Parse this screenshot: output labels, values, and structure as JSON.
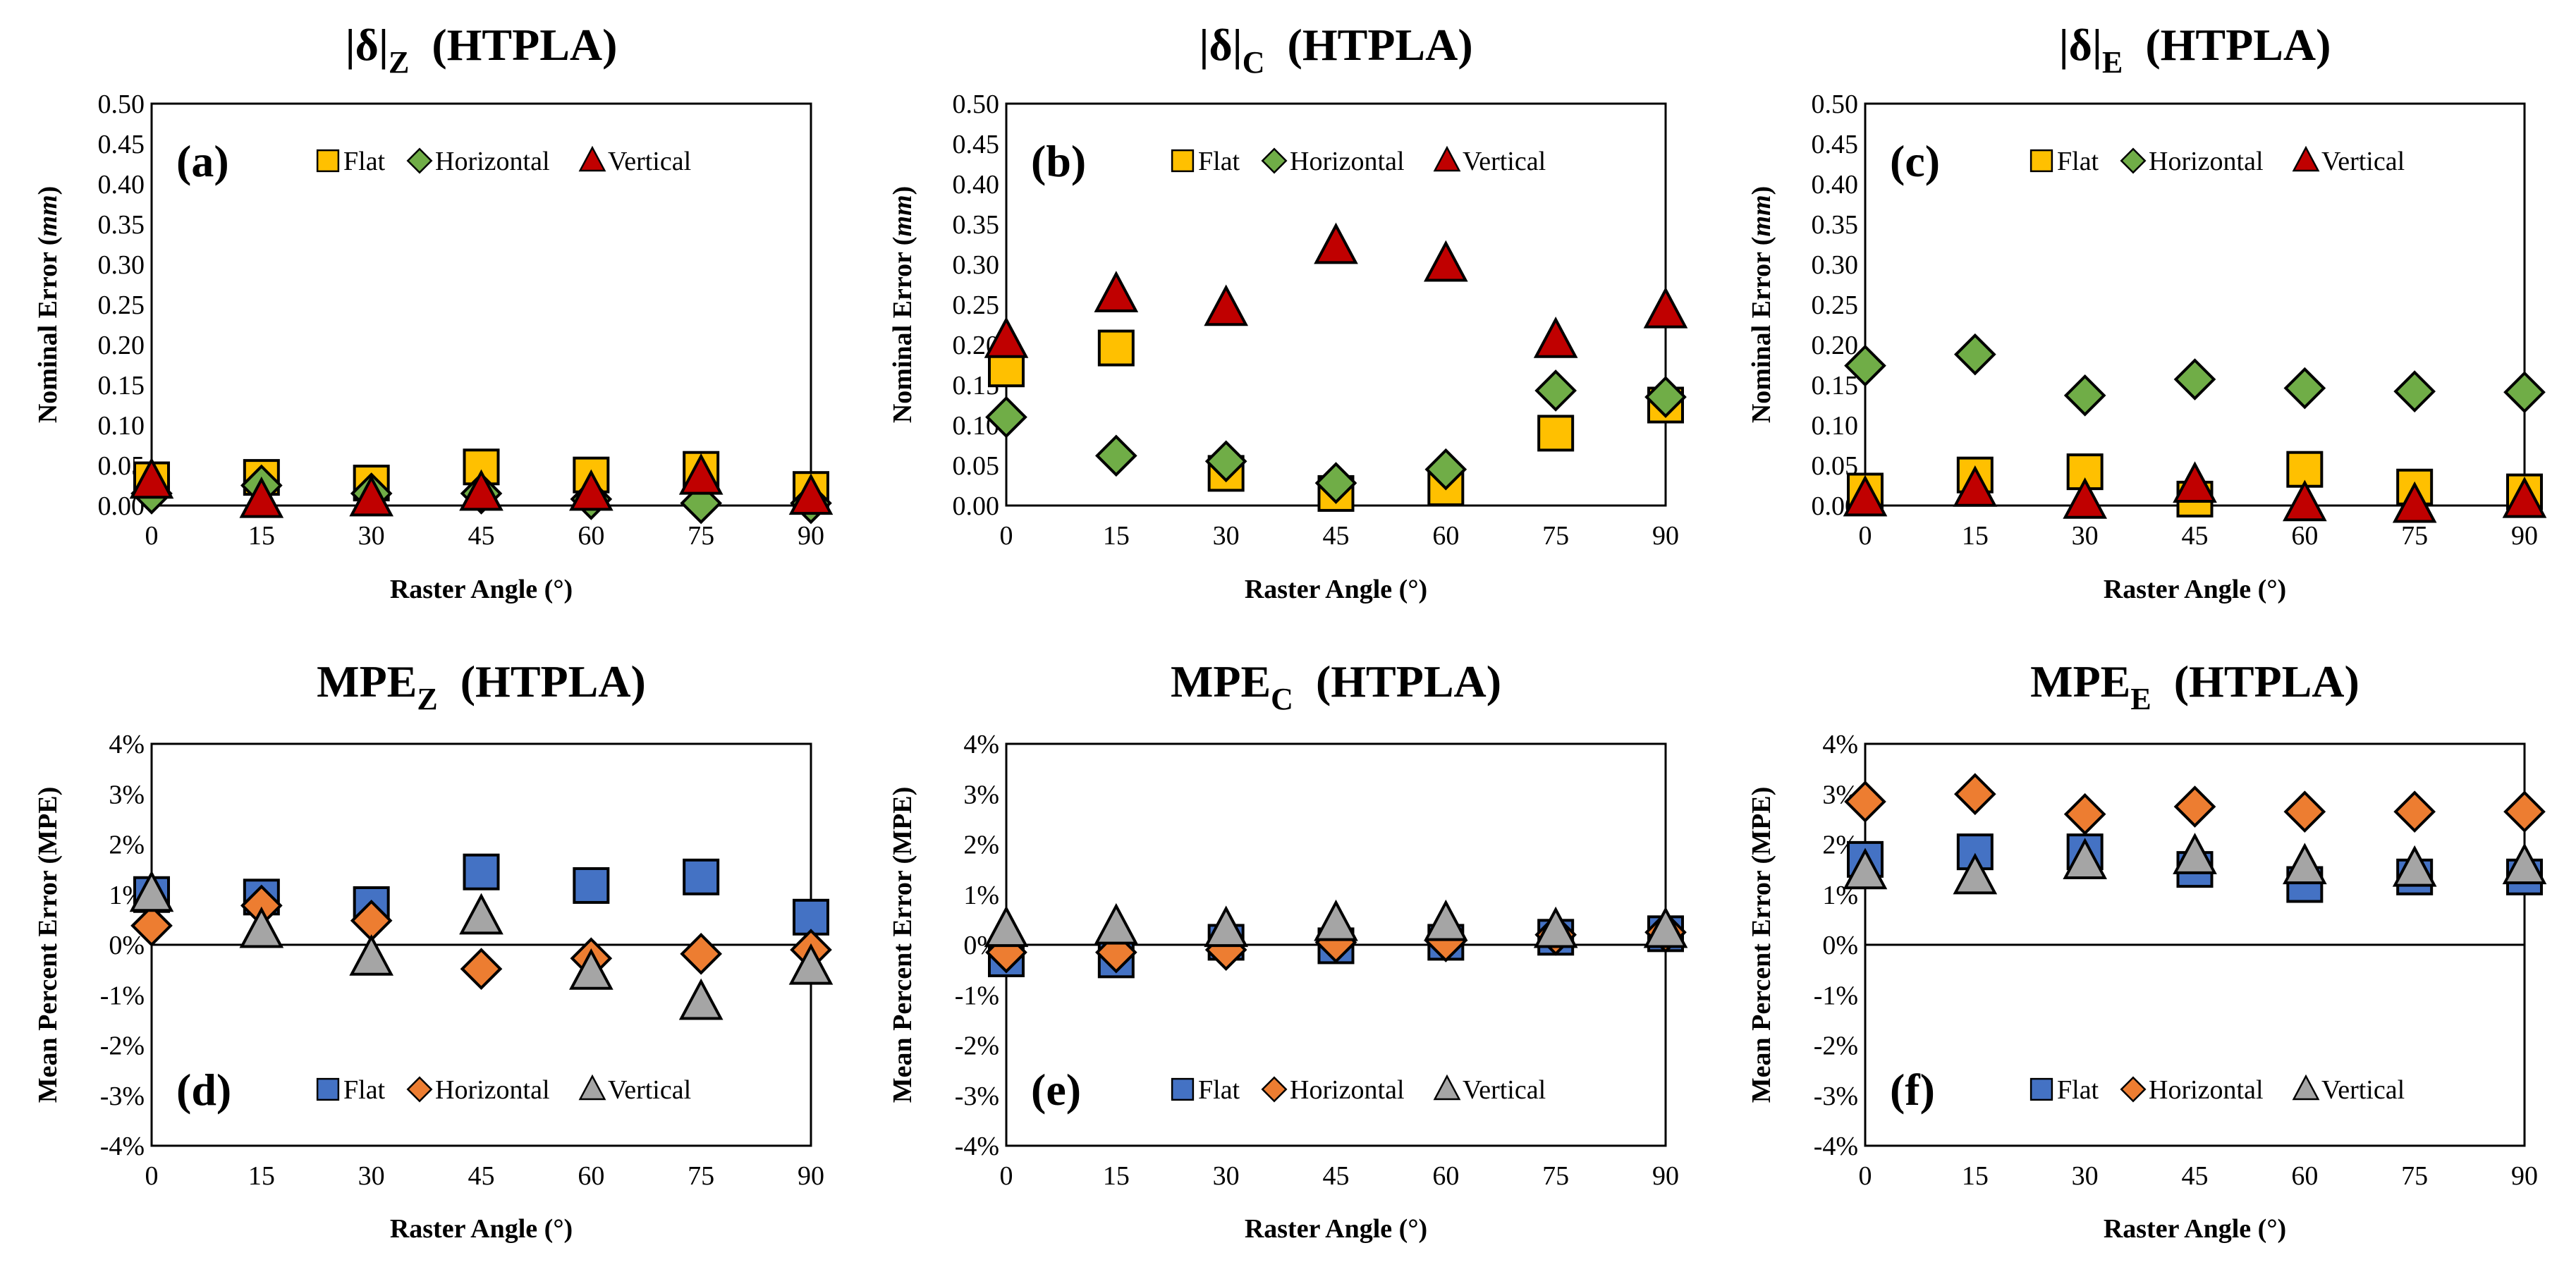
{
  "colors": {
    "flat_top": "#FFC000",
    "horizontal_top": "#70AD47",
    "vertical_top": "#C00000",
    "flat_bottom": "#4472C4",
    "horizontal_bottom": "#ED7D31",
    "vertical_bottom": "#A5A5A5",
    "marker_edge": "#000000"
  },
  "chart_data": [
    {
      "type": "scatter",
      "panel_label": "(a)",
      "title_main": "|δ|",
      "title_sub": "Z",
      "title_rest": "(HTPLA)",
      "xlabel": "Raster Angle (°)",
      "ylabel_pre": "Nominal  Error (",
      "ylabel_unit": "mm",
      "ylabel_post": ")",
      "x": [
        0,
        15,
        30,
        45,
        60,
        75,
        90
      ],
      "xticks": [
        "0",
        "15",
        "30",
        "45",
        "60",
        "75",
        "90"
      ],
      "ylim": [
        0,
        0.5
      ],
      "yticks": [
        "0.00",
        "0.05",
        "0.10",
        "0.15",
        "0.20",
        "0.25",
        "0.30",
        "0.35",
        "0.40",
        "0.45",
        "0.50"
      ],
      "legend_position": "top",
      "series": [
        {
          "name": "Flat",
          "marker": "square",
          "color": "#FFC000",
          "values": [
            0.032,
            0.035,
            0.028,
            0.048,
            0.038,
            0.045,
            0.02
          ]
        },
        {
          "name": "Horizontal",
          "marker": "diamond",
          "color": "#70AD47",
          "values": [
            0.015,
            0.025,
            0.015,
            0.015,
            0.008,
            0.003,
            0.003
          ]
        },
        {
          "name": "Vertical",
          "marker": "triangle",
          "color": "#C00000",
          "values": [
            0.03,
            0.006,
            0.008,
            0.015,
            0.015,
            0.035,
            0.01
          ]
        }
      ]
    },
    {
      "type": "scatter",
      "panel_label": "(b)",
      "title_main": "|δ|",
      "title_sub": "C",
      "title_rest": "(HTPLA)",
      "xlabel": "Raster Angle (°)",
      "ylabel_pre": "Nominal Error (",
      "ylabel_unit": "mm",
      "ylabel_post": ")",
      "x": [
        0,
        15,
        30,
        45,
        60,
        75,
        90
      ],
      "xticks": [
        "0",
        "15",
        "30",
        "45",
        "60",
        "75",
        "90"
      ],
      "ylim": [
        0,
        0.5
      ],
      "yticks": [
        "0.00",
        "0.05",
        "0.10",
        "0.15",
        "0.20",
        "0.25",
        "0.30",
        "0.35",
        "0.40",
        "0.45",
        "0.50"
      ],
      "legend_position": "top",
      "series": [
        {
          "name": "Flat",
          "marker": "square",
          "color": "#FFC000",
          "values": [
            0.17,
            0.196,
            0.04,
            0.015,
            0.022,
            0.09,
            0.125
          ]
        },
        {
          "name": "Horizontal",
          "marker": "diamond",
          "color": "#70AD47",
          "values": [
            0.11,
            0.062,
            0.055,
            0.028,
            0.045,
            0.143,
            0.135
          ]
        },
        {
          "name": "Vertical",
          "marker": "triangle",
          "color": "#C00000",
          "values": [
            0.205,
            0.262,
            0.245,
            0.322,
            0.3,
            0.205,
            0.242
          ]
        }
      ]
    },
    {
      "type": "scatter",
      "panel_label": "(c)",
      "title_main": "|δ|",
      "title_sub": "E",
      "title_rest": "(HTPLA)",
      "xlabel": "Raster Angle (°)",
      "ylabel_pre": "Nominal Error (",
      "ylabel_unit": "mm",
      "ylabel_post": ")",
      "x": [
        0,
        15,
        30,
        45,
        60,
        75,
        90
      ],
      "xticks": [
        "0",
        "15",
        "30",
        "45",
        "60",
        "75",
        "90"
      ],
      "ylim": [
        0,
        0.5
      ],
      "yticks": [
        "0.00",
        "0.05",
        "0.10",
        "0.15",
        "0.20",
        "0.25",
        "0.30",
        "0.35",
        "0.40",
        "0.45",
        "0.50"
      ],
      "legend_position": "top",
      "series": [
        {
          "name": "Flat",
          "marker": "square",
          "color": "#FFC000",
          "values": [
            0.018,
            0.038,
            0.042,
            0.008,
            0.045,
            0.023,
            0.017
          ]
        },
        {
          "name": "Horizontal",
          "marker": "diamond",
          "color": "#70AD47",
          "values": [
            0.174,
            0.188,
            0.137,
            0.157,
            0.146,
            0.142,
            0.141
          ]
        },
        {
          "name": "Vertical",
          "marker": "triangle",
          "color": "#C00000",
          "values": [
            0.008,
            0.02,
            0.005,
            0.025,
            0.002,
            0.0,
            0.006
          ]
        }
      ]
    },
    {
      "type": "scatter",
      "panel_label": "(d)",
      "title_main": "MPE",
      "title_sub": "Z",
      "title_rest": "(HTPLA)",
      "xlabel": "Raster Angle (°)",
      "ylabel_pre": "Mean Percent Error (MPE)",
      "ylabel_unit": "",
      "ylabel_post": "",
      "x": [
        0,
        15,
        30,
        45,
        60,
        75,
        90
      ],
      "xticks": [
        "0",
        "15",
        "30",
        "45",
        "60",
        "75",
        "90"
      ],
      "ylim": [
        -4,
        4
      ],
      "yticks": [
        "-4%",
        "-3%",
        "-2%",
        "-1%",
        "0%",
        "1%",
        "2%",
        "3%",
        "4%"
      ],
      "legend_position": "bottom",
      "series": [
        {
          "name": "Flat",
          "marker": "square",
          "color": "#4472C4",
          "values": [
            1.0,
            0.95,
            0.8,
            1.45,
            1.18,
            1.35,
            0.55
          ]
        },
        {
          "name": "Horizontal",
          "marker": "diamond",
          "color": "#ED7D31",
          "values": [
            0.38,
            0.78,
            0.48,
            -0.48,
            -0.27,
            -0.18,
            -0.1
          ]
        },
        {
          "name": "Vertical",
          "marker": "triangle",
          "color": "#A5A5A5",
          "values": [
            1.0,
            0.28,
            -0.27,
            0.55,
            -0.55,
            -1.15,
            -0.45
          ]
        }
      ]
    },
    {
      "type": "scatter",
      "panel_label": "(e)",
      "title_main": "MPE",
      "title_sub": "C",
      "title_rest": "(HTPLA)",
      "xlabel": "Raster Angle (°)",
      "ylabel_pre": "Mean Percent Error (MPE)",
      "ylabel_unit": "",
      "ylabel_post": "",
      "x": [
        0,
        15,
        30,
        45,
        60,
        75,
        90
      ],
      "xticks": [
        "0",
        "15",
        "30",
        "45",
        "60",
        "75",
        "90"
      ],
      "ylim": [
        -4,
        4
      ],
      "yticks": [
        "-4%",
        "-3%",
        "-2%",
        "-1%",
        "0%",
        "1%",
        "2%",
        "3%",
        "4%"
      ],
      "legend_position": "bottom",
      "series": [
        {
          "name": "Flat",
          "marker": "square",
          "color": "#4472C4",
          "values": [
            -0.28,
            -0.3,
            0.05,
            -0.02,
            0.05,
            0.15,
            0.22
          ]
        },
        {
          "name": "Horizontal",
          "marker": "diamond",
          "color": "#ED7D31",
          "values": [
            -0.15,
            -0.15,
            -0.1,
            0.05,
            0.07,
            0.2,
            0.25
          ]
        },
        {
          "name": "Vertical",
          "marker": "triangle",
          "color": "#A5A5A5",
          "values": [
            0.3,
            0.35,
            0.3,
            0.42,
            0.42,
            0.28,
            0.28
          ]
        }
      ]
    },
    {
      "type": "scatter",
      "panel_label": "(f)",
      "title_main": "MPE",
      "title_sub": "E",
      "title_rest": "(HTPLA)",
      "xlabel": "Raster Angle (°)",
      "ylabel_pre": "Mean Percent Error (MPE)",
      "ylabel_unit": "",
      "ylabel_post": "",
      "x": [
        0,
        15,
        30,
        45,
        60,
        75,
        90
      ],
      "xticks": [
        "0",
        "15",
        "30",
        "45",
        "60",
        "75",
        "90"
      ],
      "ylim": [
        -4,
        4
      ],
      "yticks": [
        "-4%",
        "-3%",
        "-2%",
        "-1%",
        "0%",
        "1%",
        "2%",
        "3%",
        "4%"
      ],
      "legend_position": "bottom",
      "series": [
        {
          "name": "Flat",
          "marker": "square",
          "color": "#4472C4",
          "values": [
            1.7,
            1.85,
            1.85,
            1.5,
            1.2,
            1.35,
            1.35
          ]
        },
        {
          "name": "Horizontal",
          "marker": "diamond",
          "color": "#ED7D31",
          "values": [
            2.85,
            3.0,
            2.6,
            2.75,
            2.65,
            2.65,
            2.65
          ]
        },
        {
          "name": "Vertical",
          "marker": "triangle",
          "color": "#A5A5A5",
          "values": [
            1.45,
            1.35,
            1.65,
            1.75,
            1.55,
            1.5,
            1.55
          ]
        }
      ]
    }
  ]
}
